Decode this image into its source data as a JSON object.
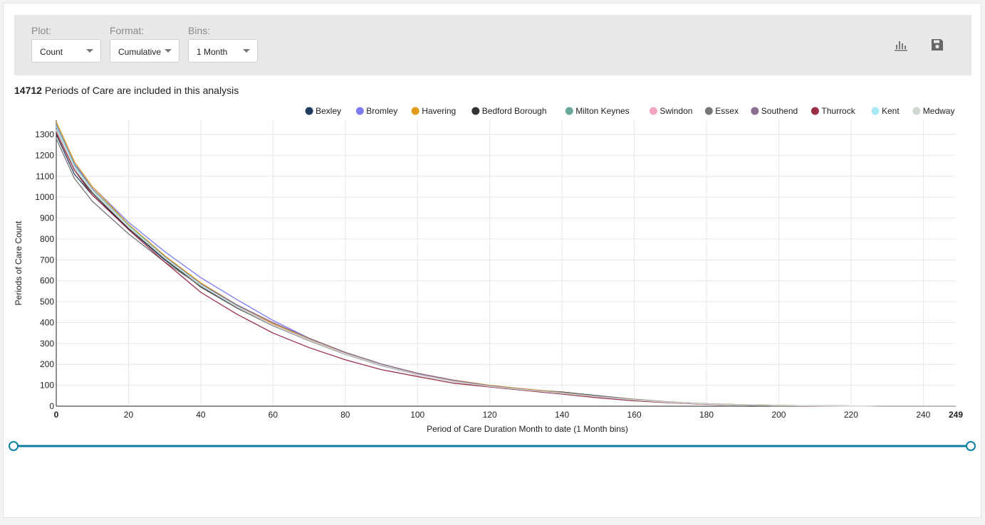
{
  "controls": {
    "plot": {
      "label": "Plot:",
      "value": "Count"
    },
    "format": {
      "label": "Format:",
      "value": "Cumulative"
    },
    "bins": {
      "label": "Bins:",
      "value": "1 Month"
    }
  },
  "toolbar_icons": [
    "bar-chart-icon",
    "save-icon"
  ],
  "summary": {
    "count": "14712",
    "text": "Periods of Care are included in this analysis"
  },
  "colors": {
    "toolbar_bg": "#e8e8e8",
    "slider": "#0f7ea0"
  },
  "chart_data": {
    "type": "line",
    "xlabel": "Period of Care Duration Month to date (1 Month bins)",
    "ylabel": "Periods of Care Count",
    "xlim": [
      0,
      249
    ],
    "ylim": [
      0,
      1350
    ],
    "x_ticks": [
      "0",
      "20",
      "40",
      "60",
      "80",
      "100",
      "120",
      "140",
      "160",
      "180",
      "200",
      "220",
      "240"
    ],
    "x_max_label": "249",
    "y_ticks": [
      "0",
      "100",
      "200",
      "300",
      "400",
      "500",
      "600",
      "700",
      "800",
      "900",
      "1000",
      "1100",
      "1200",
      "1300"
    ],
    "grid": true,
    "legend_position": "top-right",
    "x": [
      0,
      5,
      10,
      20,
      30,
      40,
      50,
      60,
      70,
      80,
      90,
      100,
      110,
      120,
      130,
      140,
      150,
      160,
      170,
      180,
      190,
      200,
      210,
      220,
      230,
      249
    ],
    "series": [
      {
        "name": "Bexley",
        "color": "#1f3a5f",
        "values": [
          1300,
          1110,
          1010,
          850,
          700,
          575,
          475,
          390,
          315,
          250,
          195,
          150,
          118,
          95,
          80,
          68,
          50,
          33,
          20,
          12,
          7,
          4,
          2,
          1,
          0,
          0
        ]
      },
      {
        "name": "Bromley",
        "color": "#7b7bf2",
        "values": [
          1350,
          1160,
          1050,
          880,
          740,
          615,
          510,
          410,
          325,
          255,
          200,
          155,
          120,
          95,
          78,
          62,
          45,
          30,
          18,
          11,
          6,
          3,
          2,
          1,
          0,
          0
        ]
      },
      {
        "name": "Havering",
        "color": "#e39a1a",
        "values": [
          1360,
          1170,
          1050,
          870,
          720,
          590,
          485,
          395,
          320,
          255,
          200,
          158,
          125,
          100,
          82,
          66,
          48,
          32,
          20,
          12,
          7,
          4,
          2,
          1,
          0,
          0
        ]
      },
      {
        "name": "Bedford Borough",
        "color": "#333333",
        "values": [
          1330,
          1130,
          1020,
          850,
          705,
          570,
          470,
          385,
          315,
          250,
          195,
          150,
          118,
          95,
          78,
          62,
          46,
          30,
          19,
          11,
          6,
          3,
          2,
          1,
          0,
          0
        ]
      },
      {
        "name": "Milton Keynes",
        "color": "#6aa89a",
        "values": [
          1345,
          1155,
          1040,
          865,
          715,
          585,
          480,
          390,
          318,
          252,
          198,
          152,
          120,
          96,
          79,
          63,
          46,
          30,
          19,
          11,
          6,
          3,
          2,
          1,
          0,
          0
        ]
      },
      {
        "name": "Swindon",
        "color": "#f2a4c2",
        "values": [
          1320,
          1140,
          1030,
          860,
          712,
          582,
          478,
          390,
          318,
          252,
          197,
          152,
          120,
          96,
          79,
          63,
          46,
          31,
          19,
          11,
          6,
          3,
          2,
          1,
          0,
          0
        ]
      },
      {
        "name": "Essex",
        "color": "#777777",
        "values": [
          1280,
          1090,
          980,
          825,
          690,
          575,
          472,
          385,
          313,
          248,
          194,
          150,
          118,
          95,
          78,
          62,
          45,
          30,
          18,
          11,
          6,
          3,
          2,
          1,
          0,
          0
        ]
      },
      {
        "name": "Southend",
        "color": "#8a6d8f",
        "values": [
          1340,
          1150,
          1040,
          860,
          715,
          585,
          485,
          400,
          325,
          258,
          202,
          158,
          124,
          98,
          80,
          64,
          47,
          31,
          19,
          11,
          6,
          3,
          2,
          1,
          0,
          0
        ]
      },
      {
        "name": "Thurrock",
        "color": "#9a2e45",
        "values": [
          1310,
          1130,
          1010,
          845,
          690,
          545,
          440,
          350,
          280,
          222,
          175,
          142,
          110,
          92,
          75,
          58,
          40,
          26,
          16,
          9,
          5,
          3,
          1,
          1,
          0,
          0
        ]
      },
      {
        "name": "Kent",
        "color": "#a9e9f5",
        "values": [
          1338,
          1148,
          1035,
          862,
          712,
          582,
          477,
          388,
          316,
          250,
          196,
          150,
          118,
          95,
          78,
          62,
          45,
          30,
          18,
          11,
          6,
          3,
          2,
          1,
          0,
          0
        ]
      },
      {
        "name": "Medway",
        "color": "#cfd8d0",
        "values": [
          1325,
          1140,
          1028,
          858,
          708,
          578,
          475,
          388,
          316,
          250,
          196,
          150,
          118,
          95,
          78,
          62,
          45,
          30,
          18,
          11,
          6,
          3,
          2,
          1,
          0,
          0
        ]
      }
    ]
  }
}
